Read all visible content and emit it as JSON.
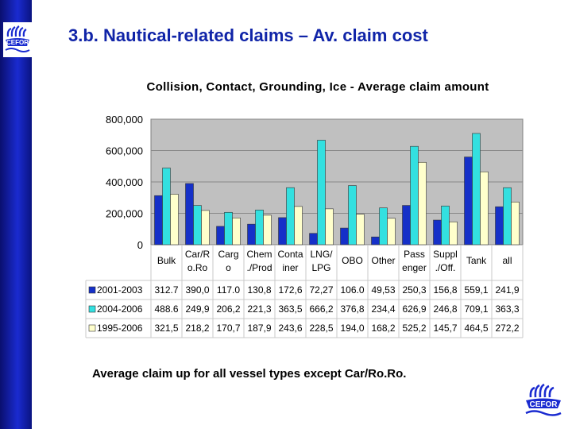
{
  "slide": {
    "title": "3.b. Nautical-related claims – Av. claim cost",
    "caption": "Average claim up for all vessel types except Car/Ro.Ro."
  },
  "colors": {
    "sidebar": "#1a2bd0",
    "title": "#1024a8",
    "plot_bg": "#c0c0c0",
    "series": [
      "#1530c8",
      "#33e0e0",
      "#ffffcc"
    ]
  },
  "chart_data": {
    "type": "bar",
    "title": "Collision, Contact, Grounding, Ice - Average claim amount",
    "ylim": [
      0,
      800000
    ],
    "y_ticks": [
      "800,000",
      "600,000",
      "400,000",
      "200,000",
      "0"
    ],
    "y_tick_values": [
      800000,
      600000,
      400000,
      200000,
      0
    ],
    "grid": true,
    "categories": [
      [
        "Bulk"
      ],
      [
        "Car/R",
        "o.Ro"
      ],
      [
        "Carg",
        "o"
      ],
      [
        "Chem",
        "./Prod"
      ],
      [
        "Conta",
        "iner"
      ],
      [
        "LNG/",
        "LPG"
      ],
      [
        "OBO"
      ],
      [
        "Other"
      ],
      [
        "Pass",
        "enger"
      ],
      [
        "Suppl",
        "./Off."
      ],
      [
        "Tank"
      ],
      [
        "all"
      ]
    ],
    "series": [
      {
        "name": "2001-2003",
        "values": [
          312700,
          390000,
          117000,
          130800,
          172600,
          72270,
          106000,
          49530,
          250300,
          156800,
          559100,
          241900
        ],
        "labels": [
          "312.7",
          "390,0",
          "117.0",
          "130,8",
          "172,6",
          "72,27",
          "106.0",
          "49,53",
          "250,3",
          "156,8",
          "559,1",
          "241,9"
        ]
      },
      {
        "name": "2004-2006",
        "values": [
          488600,
          249900,
          206200,
          221300,
          363500,
          666200,
          376800,
          234400,
          626900,
          246800,
          709100,
          363300
        ],
        "labels": [
          "488.6",
          "249,9",
          "206,2",
          "221,3",
          "363,5",
          "666,2",
          "376,8",
          "234,4",
          "626,9",
          "246,8",
          "709,1",
          "363,3"
        ]
      },
      {
        "name": "1995-2006",
        "values": [
          321500,
          218200,
          170700,
          187900,
          243600,
          228500,
          194000,
          168200,
          525200,
          145700,
          464500,
          272200
        ],
        "labels": [
          "321,5",
          "218,2",
          "170,7",
          "187,9",
          "243,6",
          "228,5",
          "194,0",
          "168,2",
          "525,2",
          "145,7",
          "464,5",
          "272,2"
        ]
      }
    ]
  }
}
